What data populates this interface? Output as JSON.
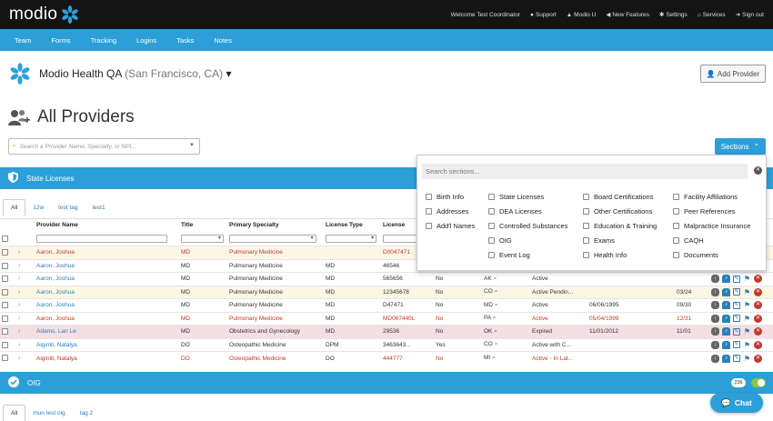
{
  "app": {
    "logo_text": "modio"
  },
  "topnav": [
    {
      "label": "Welcome Test Coordinator",
      "icon": ""
    },
    {
      "label": "Support",
      "icon": "help-circle-icon"
    },
    {
      "label": "Modio U",
      "icon": "graduation-cap-icon"
    },
    {
      "label": "New Features",
      "icon": "megaphone-icon"
    },
    {
      "label": "Settings",
      "icon": "gear-icon"
    },
    {
      "label": "Services",
      "icon": "bank-icon"
    },
    {
      "label": "Sign out",
      "icon": "sign-out-icon"
    }
  ],
  "mainnav": [
    "Team",
    "Forms",
    "Tracking",
    "Logins",
    "Tasks",
    "Notes"
  ],
  "org": {
    "name": "Modio Health QA",
    "location": "(San Francisco, CA)",
    "caret": "▾"
  },
  "add_provider_label": "Add Provider",
  "page_title": "All Providers",
  "search": {
    "placeholder": "Search a Provider Name, Specialty, or NPI..."
  },
  "sections_button": "Sections",
  "state_licenses": {
    "title": "State Licenses",
    "tabs": [
      "All",
      "12w",
      "test tag",
      "test1"
    ],
    "columns": [
      "Provider Name",
      "Title",
      "Primary Specialty",
      "License Type",
      "License"
    ],
    "rows": [
      {
        "name": "Aaron, Joshua",
        "title": "MD",
        "specialty": "Pulmonary Medicine",
        "type": "",
        "license": "D0047471",
        "col6": "",
        "state": "",
        "status": "",
        "date1": "",
        "date2": "",
        "style": "yellow",
        "namecls": "red",
        "textcls": "red"
      },
      {
        "name": "Aaron, Joshua",
        "title": "MD",
        "specialty": "Pulmonary Medicine",
        "type": "MD",
        "license": "46546",
        "col6": "",
        "state": "",
        "status": "",
        "date1": "",
        "date2": "",
        "style": "",
        "namecls": "blue",
        "textcls": ""
      },
      {
        "name": "Aaron, Joshua",
        "title": "MD",
        "specialty": "Pulmonary Medicine",
        "type": "MD",
        "license": "565656",
        "col6": "No",
        "state": "AK",
        "status": "Active",
        "date1": "",
        "date2": "",
        "style": "",
        "namecls": "blue",
        "textcls": ""
      },
      {
        "name": "Aaron, Joshua",
        "title": "MD",
        "specialty": "Pulmonary Medicine",
        "type": "MD",
        "license": "12345678",
        "col6": "No",
        "state": "CO",
        "status": "Active Pendin...",
        "date1": "",
        "date2": "03/24",
        "style": "yellow",
        "namecls": "blue",
        "textcls": ""
      },
      {
        "name": "Aaron, Joshua",
        "title": "MD",
        "specialty": "Pulmonary Medicine",
        "type": "MD",
        "license": "D47471",
        "col6": "No",
        "state": "MD",
        "status": "Active",
        "date1": "06/06/1995",
        "date2": "09/30",
        "style": "",
        "namecls": "blue",
        "textcls": ""
      },
      {
        "name": "Aaron, Joshua",
        "title": "MD",
        "specialty": "Pulmonary Medicine",
        "type": "MD",
        "license": "MD067445L",
        "col6": "No",
        "state": "PA",
        "status": "Active",
        "date1": "05/04/1999",
        "date2": "12/31",
        "style": "",
        "namecls": "red",
        "textcls": "red"
      },
      {
        "name": "Adams, Lan Le",
        "title": "MD",
        "specialty": "Obstetrics and Gynecology",
        "type": "MD",
        "license": "29536",
        "col6": "No",
        "state": "OK",
        "status": "Expired",
        "date1": "11/01/2012",
        "date2": "11/01",
        "style": "pink",
        "namecls": "blue",
        "textcls": ""
      },
      {
        "name": "Aiginiti, Natalya",
        "title": "DO",
        "specialty": "Osteopathic Medicine",
        "type": "DPM",
        "license": "3463643...",
        "col6": "Yes",
        "state": "CO",
        "status": "Active with C...",
        "date1": "",
        "date2": "",
        "style": "",
        "namecls": "blue",
        "textcls": ""
      },
      {
        "name": "Aiginiti, Natalya",
        "title": "DO",
        "specialty": "Osteopathic Medicine",
        "type": "DO",
        "license": "444777",
        "col6": "No",
        "state": "MI",
        "status": "Active - In Lat...",
        "date1": "",
        "date2": "",
        "style": "",
        "namecls": "red",
        "textcls": "red"
      }
    ]
  },
  "sections_panel": {
    "placeholder": "Search sections...",
    "col1": [
      "Birth Info",
      "Addresses",
      "Add'l Names"
    ],
    "col2": [
      "State Licenses",
      "DEA Licenses",
      "Controlled Substances",
      "OIG",
      "Event Log"
    ],
    "col3": [
      "Board Certifications",
      "Other Certifications",
      "Education & Training",
      "Exams",
      "Health Info"
    ],
    "col4": [
      "Facility Affiliations",
      "Peer References",
      "Malpractice Insurance",
      "CAQH",
      "Documents"
    ]
  },
  "oig": {
    "title": "OIG",
    "badge": "236",
    "tabs": [
      "All",
      "mun test oig",
      "tag 2"
    ]
  },
  "chat_label": "Chat",
  "colors": {
    "topbar": "#141414",
    "accent": "#2c9fd9"
  }
}
